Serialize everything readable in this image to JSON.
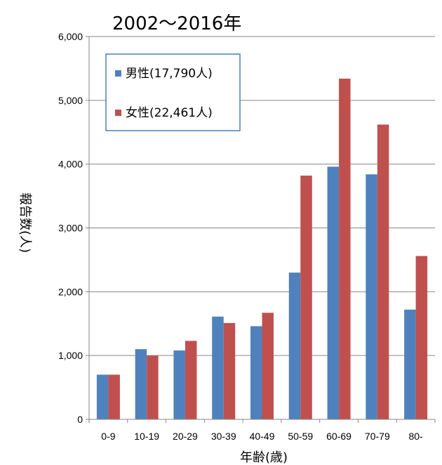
{
  "chart_data": {
    "type": "bar",
    "title": "2002～2016年",
    "xlabel": "年齢(歳)",
    "ylabel": "報告数(人)",
    "categories": [
      "0-9",
      "10-19",
      "20-29",
      "30-39",
      "40-49",
      "50-59",
      "60-69",
      "70-79",
      "80-"
    ],
    "series": [
      {
        "name": "男性(17,790人)",
        "color": "#4F81BD",
        "values": [
          700,
          1100,
          1080,
          1610,
          1460,
          2300,
          3960,
          3840,
          1720
        ]
      },
      {
        "name": "女性(22,461人)",
        "color": "#C0504D",
        "values": [
          700,
          1000,
          1230,
          1510,
          1670,
          3820,
          5340,
          4620,
          2560
        ]
      }
    ],
    "ylim": [
      0,
      6000
    ],
    "yticks": [
      0,
      1000,
      2000,
      3000,
      4000,
      5000,
      6000
    ],
    "ytick_labels": [
      "0",
      "1,000",
      "2,000",
      "3,000",
      "4,000",
      "5,000",
      "6,000"
    ],
    "grid": true,
    "legend_position": "top-left"
  }
}
